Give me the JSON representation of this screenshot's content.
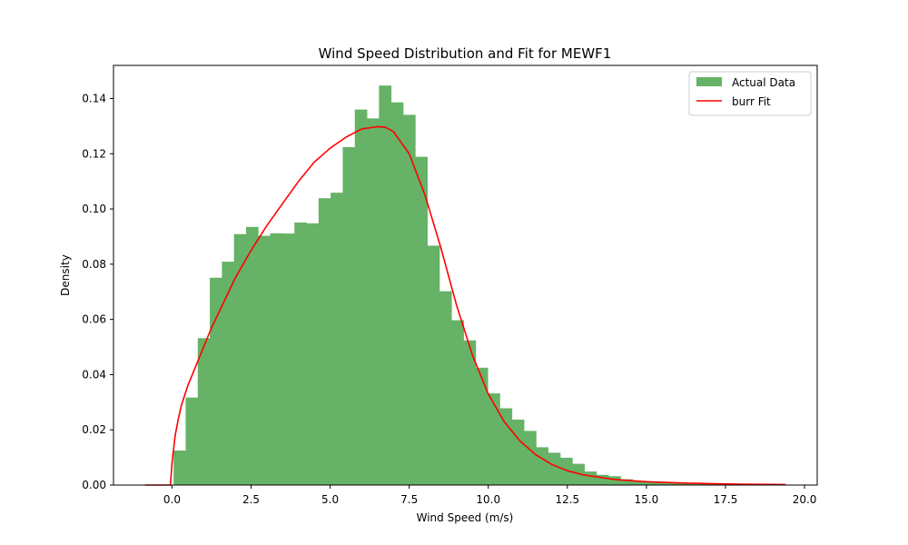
{
  "chart_data": {
    "type": "bar",
    "title": "Wind Speed Distribution and Fit for MEWF1",
    "xlabel": "Wind Speed (m/s)",
    "ylabel": "Density",
    "xlim": [
      -1.85,
      20.4
    ],
    "ylim": [
      0,
      0.152
    ],
    "grid": false,
    "legend_position": "top-right",
    "x_ticks": [
      0.0,
      2.5,
      5.0,
      7.5,
      10.0,
      12.5,
      15.0,
      17.5,
      20.0
    ],
    "x_tick_labels": [
      "0.0",
      "2.5",
      "5.0",
      "7.5",
      "10.0",
      "12.5",
      "15.0",
      "17.5",
      "20.0"
    ],
    "y_ticks": [
      0.0,
      0.02,
      0.04,
      0.06,
      0.08,
      0.1,
      0.12,
      0.14
    ],
    "y_tick_labels": [
      "0.00",
      "0.02",
      "0.04",
      "0.06",
      "0.08",
      "0.10",
      "0.12",
      "0.14"
    ],
    "histogram": {
      "name": "Actual Data",
      "color": "#66b266",
      "bin_width": 0.382,
      "bin_starts": [
        0.05,
        0.432,
        0.814,
        1.196,
        1.578,
        1.96,
        2.342,
        2.724,
        3.106,
        3.488,
        3.87,
        4.252,
        4.634,
        5.016,
        5.398,
        5.78,
        6.162,
        6.544,
        6.926,
        7.308,
        7.69,
        8.072,
        8.454,
        8.836,
        9.218,
        9.6,
        9.982,
        10.364,
        10.746,
        11.128,
        11.51,
        11.892,
        12.274,
        12.656,
        13.038,
        13.42,
        13.802,
        14.184,
        14.566,
        14.948,
        15.33,
        15.712,
        16.094,
        16.476,
        16.858,
        17.24,
        17.622,
        18.004,
        18.386,
        18.768
      ],
      "values": [
        0.0125,
        0.0317,
        0.0532,
        0.0751,
        0.0809,
        0.0909,
        0.0935,
        0.0903,
        0.0912,
        0.0911,
        0.0951,
        0.0948,
        0.1039,
        0.1059,
        0.1224,
        0.136,
        0.1328,
        0.1447,
        0.1386,
        0.1341,
        0.1189,
        0.0867,
        0.0702,
        0.0597,
        0.0524,
        0.0425,
        0.0332,
        0.0278,
        0.0237,
        0.0196,
        0.0137,
        0.0117,
        0.0099,
        0.0077,
        0.0049,
        0.0037,
        0.0032,
        0.0021,
        0.0015,
        0.0012,
        0.0009,
        0.0007,
        0.0005,
        0.0004,
        0.0003,
        0.0002,
        0.0002,
        0.0001,
        0.0001,
        0.0001
      ]
    },
    "fit": {
      "name": "burr Fit",
      "color": "#ff0000",
      "x": [
        -0.85,
        -0.05,
        0.0,
        0.1,
        0.2,
        0.3,
        0.5,
        0.75,
        1.0,
        1.25,
        1.5,
        2.0,
        2.5,
        3.0,
        3.5,
        4.0,
        4.5,
        5.0,
        5.5,
        6.0,
        6.5,
        6.75,
        7.0,
        7.5,
        8.0,
        8.5,
        9.0,
        9.5,
        10.0,
        10.5,
        11.0,
        11.5,
        12.0,
        12.5,
        13.0,
        14.0,
        15.0,
        16.0,
        17.0,
        18.0,
        19.4
      ],
      "y": [
        0.0,
        0.0,
        0.008,
        0.018,
        0.024,
        0.029,
        0.036,
        0.043,
        0.05,
        0.057,
        0.063,
        0.075,
        0.085,
        0.094,
        0.102,
        0.11,
        0.117,
        0.122,
        0.126,
        0.129,
        0.1298,
        0.1296,
        0.128,
        0.12,
        0.105,
        0.086,
        0.065,
        0.047,
        0.033,
        0.023,
        0.016,
        0.011,
        0.0075,
        0.0052,
        0.0037,
        0.002,
        0.0012,
        0.0008,
        0.0005,
        0.0003,
        0.0002
      ]
    }
  }
}
